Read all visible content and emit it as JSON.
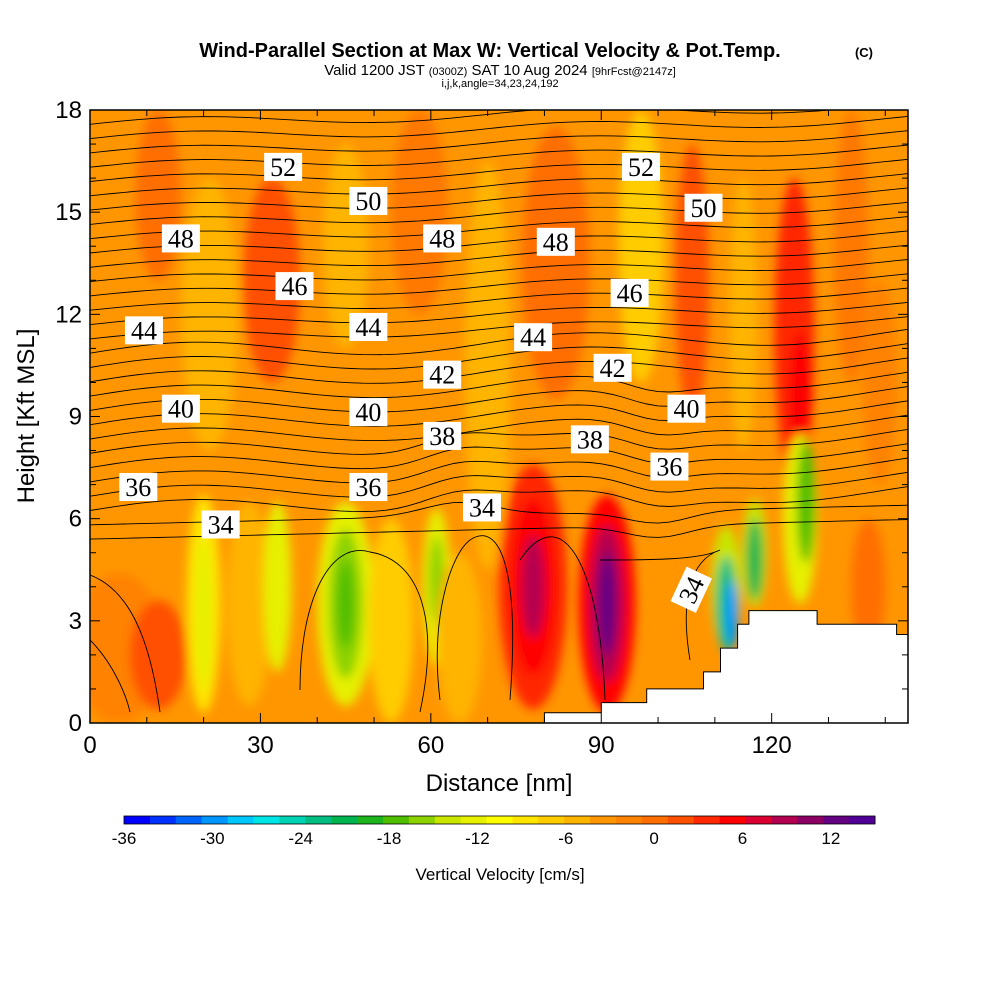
{
  "chart_data": {
    "type": "heatmap",
    "title": "Wind-Parallel Section at Max W: Vertical Velocity & Pot.Temp.",
    "title_mark": "(C)",
    "subtitle_main_a": "Valid 1200 JST",
    "subtitle_small_a": "(0300Z)",
    "subtitle_main_b": "SAT 10 Aug 2024",
    "subtitle_small_b": "[9hrFcst@2147z]",
    "subtitle2": "i,j,k,angle=34,23,24,192",
    "xlabel": "Distance [nm]",
    "ylabel": "Height [Kft MSL]",
    "xlim": [
      0,
      144
    ],
    "ylim": [
      0,
      18
    ],
    "x_ticks": [
      0,
      30,
      60,
      90,
      120
    ],
    "y_ticks": [
      0,
      3,
      6,
      9,
      12,
      15,
      18
    ],
    "colorbar": {
      "label": "Vertical Velocity [cm/s]",
      "range": [
        -36,
        15
      ],
      "step": 2,
      "tick_values": [
        -36,
        -30,
        -24,
        -18,
        -12,
        -6,
        0,
        6,
        12
      ],
      "colors": [
        "#0000ff",
        "#0032ff",
        "#0064ff",
        "#0096ff",
        "#00c8ff",
        "#00e6e6",
        "#00d2b4",
        "#00be82",
        "#00b450",
        "#1eb41e",
        "#50be00",
        "#8cd200",
        "#c8e600",
        "#e6f000",
        "#ffff00",
        "#ffe600",
        "#ffcc00",
        "#ffb400",
        "#ff9600",
        "#ff8200",
        "#ff6e00",
        "#ff5000",
        "#ff2800",
        "#ff0000",
        "#dc0032",
        "#b40050",
        "#8c0064",
        "#640082",
        "#500096"
      ]
    },
    "theta_contour_labels": [
      {
        "value": "52",
        "x": 34,
        "y": 16.3
      },
      {
        "value": "52",
        "x": 97,
        "y": 16.3
      },
      {
        "value": "50",
        "x": 49,
        "y": 15.3
      },
      {
        "value": "50",
        "x": 108,
        "y": 15.1
      },
      {
        "value": "48",
        "x": 16,
        "y": 14.2
      },
      {
        "value": "48",
        "x": 62,
        "y": 14.2
      },
      {
        "value": "48",
        "x": 82,
        "y": 14.1
      },
      {
        "value": "46",
        "x": 36,
        "y": 12.8
      },
      {
        "value": "46",
        "x": 95,
        "y": 12.6
      },
      {
        "value": "44",
        "x": 9.5,
        "y": 11.5
      },
      {
        "value": "44",
        "x": 49,
        "y": 11.6
      },
      {
        "value": "44",
        "x": 78,
        "y": 11.3
      },
      {
        "value": "42",
        "x": 62,
        "y": 10.2
      },
      {
        "value": "42",
        "x": 92,
        "y": 10.4
      },
      {
        "value": "40",
        "x": 16,
        "y": 9.2
      },
      {
        "value": "40",
        "x": 49,
        "y": 9.1
      },
      {
        "value": "40",
        "x": 105,
        "y": 9.2
      },
      {
        "value": "38",
        "x": 62,
        "y": 8.4
      },
      {
        "value": "38",
        "x": 88,
        "y": 8.3
      },
      {
        "value": "36",
        "x": 8.5,
        "y": 6.9
      },
      {
        "value": "36",
        "x": 49,
        "y": 6.9
      },
      {
        "value": "36",
        "x": 102,
        "y": 7.5
      },
      {
        "value": "34",
        "x": 23,
        "y": 5.8
      },
      {
        "value": "34",
        "x": 69,
        "y": 6.3
      },
      {
        "value": "34",
        "x": 106,
        "y": 3.9
      }
    ]
  }
}
